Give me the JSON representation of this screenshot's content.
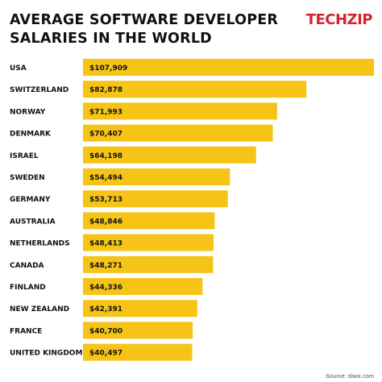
{
  "header": {
    "title_line1": "AVERAGE SOFTWARE DEVELOPER",
    "title_line2": "SALARIES IN THE WORLD",
    "brand": "TECHZIP"
  },
  "source": "Source: daxx.com",
  "colors": {
    "bar": "#f5c416",
    "brand": "#d7232f",
    "text": "#111111"
  },
  "chart_data": {
    "type": "bar",
    "orientation": "horizontal",
    "title": "AVERAGE SOFTWARE DEVELOPER SALARIES IN THE WORLD",
    "categories": [
      "USA",
      "SWITZERLAND",
      "NORWAY",
      "DENMARK",
      "ISRAEL",
      "SWEDEN",
      "GERMANY",
      "AUSTRALIA",
      "NETHERLANDS",
      "CANADA",
      "FINLAND",
      "NEW ZEALAND",
      "FRANCE",
      "UNITED KINGDOM"
    ],
    "values": [
      107909,
      82878,
      71993,
      70407,
      64198,
      54494,
      53713,
      48846,
      48413,
      48271,
      44336,
      42391,
      40700,
      40497
    ],
    "labels": [
      "$107,909",
      "$82,878",
      "$71,993",
      "$70,407",
      "$64,198",
      "$54,494",
      "$53,713",
      "$48,846",
      "$48,413",
      "$48,271",
      "$44,336",
      "$42,391",
      "$40,700",
      "$40,497"
    ],
    "xlim": [
      0,
      107909
    ],
    "grid": false
  }
}
